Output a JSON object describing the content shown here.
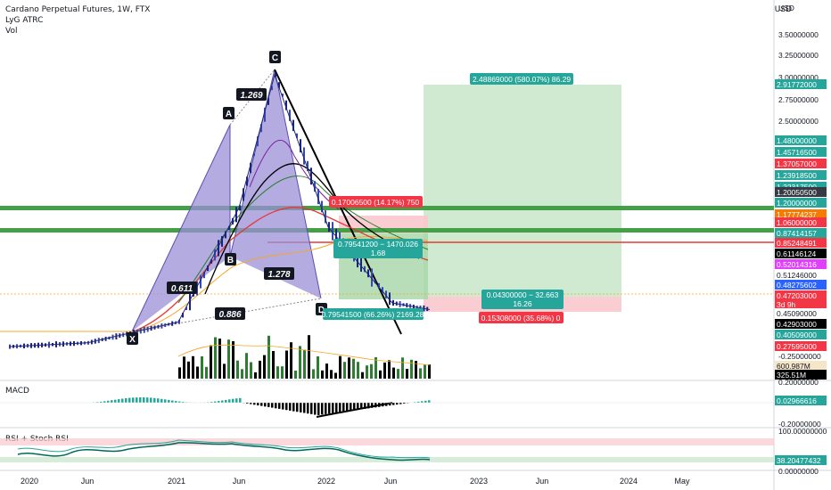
{
  "header": {
    "symbol_line": "Cardano Perpetual Futures, 1W, FTX",
    "indicator_1": "LyG ATRC",
    "indicator_2": "Vol"
  },
  "axis": {
    "currency": "USD",
    "price_ticks": [
      "3.50000000",
      "3.25000000",
      "3.00000000",
      "2.75000000",
      "2.50000000",
      "-0.25000000",
      "0.20000000"
    ],
    "macd_ticks": [
      "0.20000000",
      "-0.20000000"
    ],
    "rsi_ticks": [
      "100.00000000",
      "0.00000000"
    ],
    "time_ticks": [
      "2020",
      "Jun",
      "2021",
      "Jun",
      "2022",
      "Jun",
      "2023",
      "Jun",
      "2024",
      "May"
    ]
  },
  "price_tags": [
    {
      "text": "2.91772000",
      "color": "#26a69a"
    },
    {
      "text": "1.48000000",
      "color": "#26a69a"
    },
    {
      "text": "1.45716500",
      "color": "#26a69a"
    },
    {
      "text": "1.37057000",
      "color": "#f23645"
    },
    {
      "text": "1.23918500",
      "color": "#26a69a"
    },
    {
      "text": "1.22317500",
      "color": "#26a69a"
    },
    {
      "text": "1.20050500",
      "color": "#363a45"
    },
    {
      "text": "1.20000000",
      "color": "#26a69a"
    },
    {
      "text": "1.17774237",
      "color": "#f57c00"
    },
    {
      "text": "1.06000000",
      "color": "#f23645"
    },
    {
      "text": "0.87414157",
      "color": "#26a69a"
    },
    {
      "text": "0.85248491",
      "color": "#f23645"
    },
    {
      "text": "0.61146124",
      "color": "#000000"
    },
    {
      "text": "0.52014316",
      "color": "#e040fb"
    },
    {
      "text": "0.51246000",
      "color": "#ffffff"
    },
    {
      "text": "0.48275602",
      "color": "#2962ff"
    },
    {
      "text": "0.47203000",
      "color": "#f23645"
    },
    {
      "text": "3d 9h",
      "color": "#f23645"
    },
    {
      "text": "0.45090000",
      "color": "#ffffff"
    },
    {
      "text": "0.42903000",
      "color": "#000000"
    },
    {
      "text": "0.40509000",
      "color": "#26a69a"
    },
    {
      "text": "0.27595000",
      "color": "#f23645"
    },
    {
      "text": "600.987M",
      "color": "#f5e6c8"
    },
    {
      "text": "325.51M",
      "color": "#000000"
    },
    {
      "text": "0.02966616",
      "color": "#26a69a"
    },
    {
      "text": "38.20477432",
      "color": "#26a69a"
    }
  ],
  "pattern_labels": {
    "x": "X",
    "a": "A",
    "b": "B",
    "c": "C",
    "d": "D",
    "xa_b_ratio": "0.611",
    "ab_c_ratio": "1.269",
    "bc_d_ratio": "1.278",
    "xa_d_ratio": "0.886"
  },
  "trade_labels": {
    "target_long": "2.48869000 (580.07%) 86.29",
    "stop_long": "0.15308000 (35.68%) 0",
    "entry_long_1": "0.04300000 − 32.663",
    "entry_long_2": "16.26",
    "short_top": "0.17006500 (14.17%) 750",
    "short_mid_1": "0.79541200 − 1470.026",
    "short_mid_2": "1.68",
    "short_bottom": "0.79541500 (66.26%) 2169.28"
  },
  "panes": {
    "macd_title": "MACD",
    "rsi_title": "RSI + Stoch RSI"
  },
  "colors": {
    "harmonic_fill": "#9b8fd6",
    "up": "#26a69a",
    "down": "#f23645",
    "long_zone": "#c8e6c9",
    "stop_zone": "#f8c8cc"
  },
  "chart_data": {
    "type": "line",
    "title": "Cardano Perpetual Futures, 1W, FTX",
    "x": [
      "2020",
      "2020-06",
      "2021",
      "2021-06",
      "2021-09",
      "2022",
      "2022-06",
      "2022-10"
    ],
    "series": [
      {
        "values": [
          0.04,
          0.08,
          0.3,
          1.5,
          2.9,
          1.3,
          0.5,
          0.43
        ]
      }
    ],
    "ylim": [
      -0.25,
      3.5
    ],
    "harmonic_pattern": {
      "points": [
        "X",
        "A",
        "B",
        "C",
        "D"
      ],
      "ratios": {
        "AB": 0.611,
        "BC": 1.269,
        "CD": 1.278,
        "XD": 0.886
      }
    },
    "horizontal_levels": [
      1.2,
      1.06,
      0.85248491
    ]
  }
}
